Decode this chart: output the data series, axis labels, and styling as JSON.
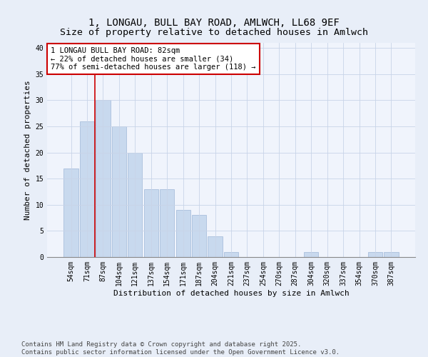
{
  "title1": "1, LONGAU, BULL BAY ROAD, AMLWCH, LL68 9EF",
  "title2": "Size of property relative to detached houses in Amlwch",
  "xlabel": "Distribution of detached houses by size in Amlwch",
  "ylabel": "Number of detached properties",
  "categories": [
    "54sqm",
    "71sqm",
    "87sqm",
    "104sqm",
    "121sqm",
    "137sqm",
    "154sqm",
    "171sqm",
    "187sqm",
    "204sqm",
    "221sqm",
    "237sqm",
    "254sqm",
    "270sqm",
    "287sqm",
    "304sqm",
    "320sqm",
    "337sqm",
    "354sqm",
    "370sqm",
    "387sqm"
  ],
  "values": [
    17,
    26,
    30,
    25,
    20,
    13,
    13,
    9,
    8,
    4,
    1,
    0,
    0,
    0,
    0,
    1,
    0,
    0,
    0,
    1,
    1
  ],
  "bar_color": "#c8d9ee",
  "bar_edge_color": "#a0b8d8",
  "vline_x": 1.5,
  "vline_color": "#cc0000",
  "annotation_line1": "1 LONGAU BULL BAY ROAD: 82sqm",
  "annotation_line2": "← 22% of detached houses are smaller (34)",
  "annotation_line3": "77% of semi-detached houses are larger (118) →",
  "annotation_box_color": "#cc0000",
  "ylim": [
    0,
    41
  ],
  "yticks": [
    0,
    5,
    10,
    15,
    20,
    25,
    30,
    35,
    40
  ],
  "footer_text": "Contains HM Land Registry data © Crown copyright and database right 2025.\nContains public sector information licensed under the Open Government Licence v3.0.",
  "bg_color": "#e8eef8",
  "plot_bg_color": "#f0f4fc",
  "grid_color": "#c8d4e8",
  "title_fontsize": 10,
  "axis_label_fontsize": 8,
  "tick_fontsize": 7,
  "annotation_fontsize": 7.5,
  "footer_fontsize": 6.5
}
